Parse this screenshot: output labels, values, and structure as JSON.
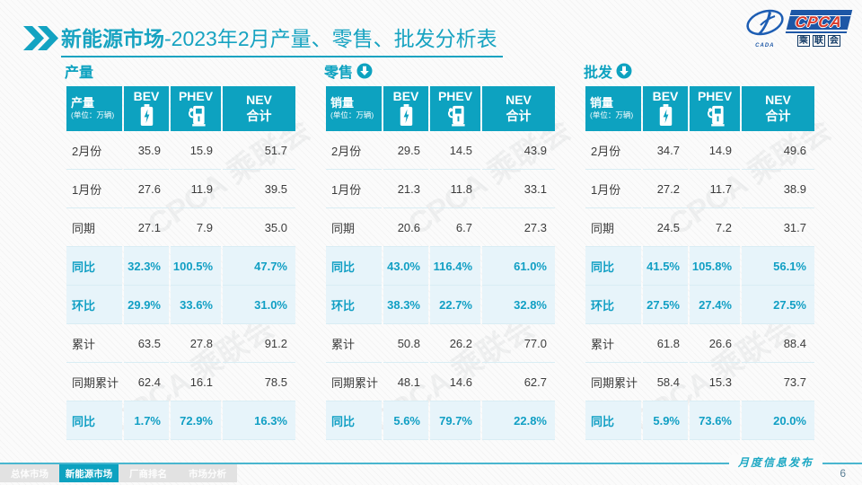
{
  "title": {
    "highlight": "新能源市场",
    "rest": "-2023年2月产量、零售、批发分析表"
  },
  "logo": {
    "cpca": "CPCA",
    "cada": "CADA",
    "sub_chars": [
      "乘",
      "联",
      "会"
    ]
  },
  "colors": {
    "accent": "#0da2c0",
    "highlight_row_bg": "#e7f4fa",
    "highlight_text": "#119fc4",
    "footer_line": "#49b6cf"
  },
  "watermark_text": "CPCA 乘联会",
  "tables": [
    {
      "section": "产量",
      "trend": "none",
      "header": {
        "label": "产量",
        "unit": "(单位：万辆)",
        "cols": [
          "BEV",
          "PHEV"
        ],
        "total": [
          "NEV",
          "合计"
        ]
      },
      "rows": [
        {
          "label": "2月份",
          "values": [
            "35.9",
            "15.9",
            "51.7"
          ],
          "hl": false
        },
        {
          "label": "1月份",
          "values": [
            "27.6",
            "11.9",
            "39.5"
          ],
          "hl": false
        },
        {
          "label": "同期",
          "values": [
            "27.1",
            "7.9",
            "35.0"
          ],
          "hl": false
        },
        {
          "label": "同比",
          "values": [
            "32.3%",
            "100.5%",
            "47.7%"
          ],
          "hl": true
        },
        {
          "label": "环比",
          "values": [
            "29.9%",
            "33.6%",
            "31.0%"
          ],
          "hl": true
        },
        {
          "label": "累计",
          "values": [
            "63.5",
            "27.8",
            "91.2"
          ],
          "hl": false
        },
        {
          "label": "同期累计",
          "values": [
            "62.4",
            "16.1",
            "78.5"
          ],
          "hl": false
        },
        {
          "label": "同比",
          "values": [
            "1.7%",
            "72.9%",
            "16.3%"
          ],
          "hl": true
        }
      ]
    },
    {
      "section": "零售",
      "trend": "down",
      "header": {
        "label": "销量",
        "unit": "(单位：万辆)",
        "cols": [
          "BEV",
          "PHEV"
        ],
        "total": [
          "NEV",
          "合计"
        ]
      },
      "rows": [
        {
          "label": "2月份",
          "values": [
            "29.5",
            "14.5",
            "43.9"
          ],
          "hl": false
        },
        {
          "label": "1月份",
          "values": [
            "21.3",
            "11.8",
            "33.1"
          ],
          "hl": false
        },
        {
          "label": "同期",
          "values": [
            "20.6",
            "6.7",
            "27.3"
          ],
          "hl": false
        },
        {
          "label": "同比",
          "values": [
            "43.0%",
            "116.4%",
            "61.0%"
          ],
          "hl": true
        },
        {
          "label": "环比",
          "values": [
            "38.3%",
            "22.7%",
            "32.8%"
          ],
          "hl": true
        },
        {
          "label": "累计",
          "values": [
            "50.8",
            "26.2",
            "77.0"
          ],
          "hl": false
        },
        {
          "label": "同期累计",
          "values": [
            "48.1",
            "14.6",
            "62.7"
          ],
          "hl": false
        },
        {
          "label": "同比",
          "values": [
            "5.6%",
            "79.7%",
            "22.8%"
          ],
          "hl": true
        }
      ]
    },
    {
      "section": "批发",
      "trend": "down",
      "header": {
        "label": "销量",
        "unit": "(单位：万辆)",
        "cols": [
          "BEV",
          "PHEV"
        ],
        "total": [
          "NEV",
          "合计"
        ]
      },
      "rows": [
        {
          "label": "2月份",
          "values": [
            "34.7",
            "14.9",
            "49.6"
          ],
          "hl": false
        },
        {
          "label": "1月份",
          "values": [
            "27.2",
            "11.7",
            "38.9"
          ],
          "hl": false
        },
        {
          "label": "同期",
          "values": [
            "24.5",
            "7.2",
            "31.7"
          ],
          "hl": false
        },
        {
          "label": "同比",
          "values": [
            "41.5%",
            "105.8%",
            "56.1%"
          ],
          "hl": true
        },
        {
          "label": "环比",
          "values": [
            "27.5%",
            "27.4%",
            "27.5%"
          ],
          "hl": true
        },
        {
          "label": "累计",
          "values": [
            "61.8",
            "26.6",
            "88.4"
          ],
          "hl": false
        },
        {
          "label": "同期累计",
          "values": [
            "58.4",
            "15.3",
            "73.7"
          ],
          "hl": false
        },
        {
          "label": "同比",
          "values": [
            "5.9%",
            "73.6%",
            "20.0%"
          ],
          "hl": true
        }
      ]
    }
  ],
  "footer": {
    "tabs": [
      {
        "label": "总体市场",
        "active": false
      },
      {
        "label": "新能源市场",
        "active": true
      },
      {
        "label": "厂商排名",
        "active": false
      },
      {
        "label": "市场分析",
        "active": false
      }
    ],
    "note": "月度信息发布",
    "page": "6"
  }
}
